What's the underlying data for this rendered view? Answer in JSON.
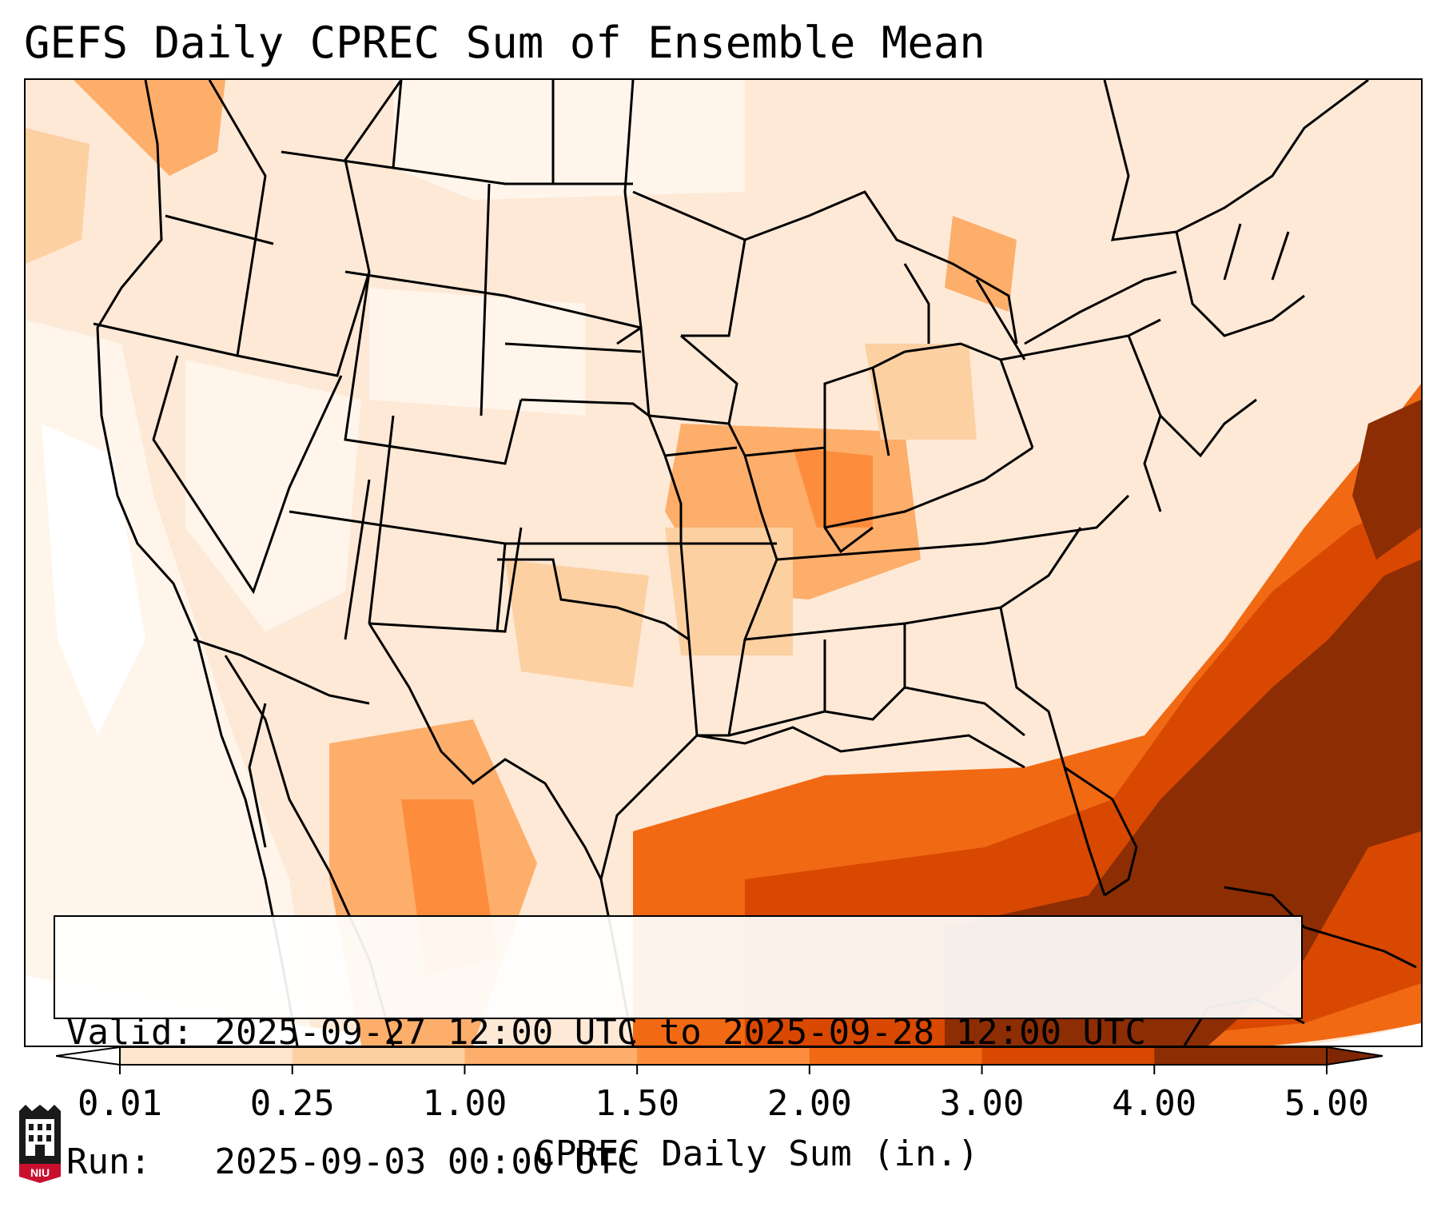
{
  "title": "GEFS Daily CPREC Sum of Ensemble Mean",
  "info": {
    "valid_label": "Valid:",
    "valid_value": "2025-09-27 12:00 UTC to 2025-09-28 12:00 UTC",
    "run_label": "Run:",
    "run_value": "2025-09-03 00:00 UTC"
  },
  "colorbar": {
    "label": "CPREC Daily Sum (in.)",
    "ticks": [
      "0.01",
      "0.25",
      "1.00",
      "1.50",
      "2.00",
      "3.00",
      "4.00",
      "5.00"
    ],
    "colors": [
      "#fff5eb",
      "#fee6ce",
      "#fdd0a2",
      "#fdae6b",
      "#fd8d3c",
      "#f16913",
      "#d94801",
      "#8c2d04"
    ],
    "under_color": "#ffffff",
    "over_color": "#7f2704"
  },
  "logo": {
    "text": "NIU",
    "accent": "#c8102e"
  }
}
